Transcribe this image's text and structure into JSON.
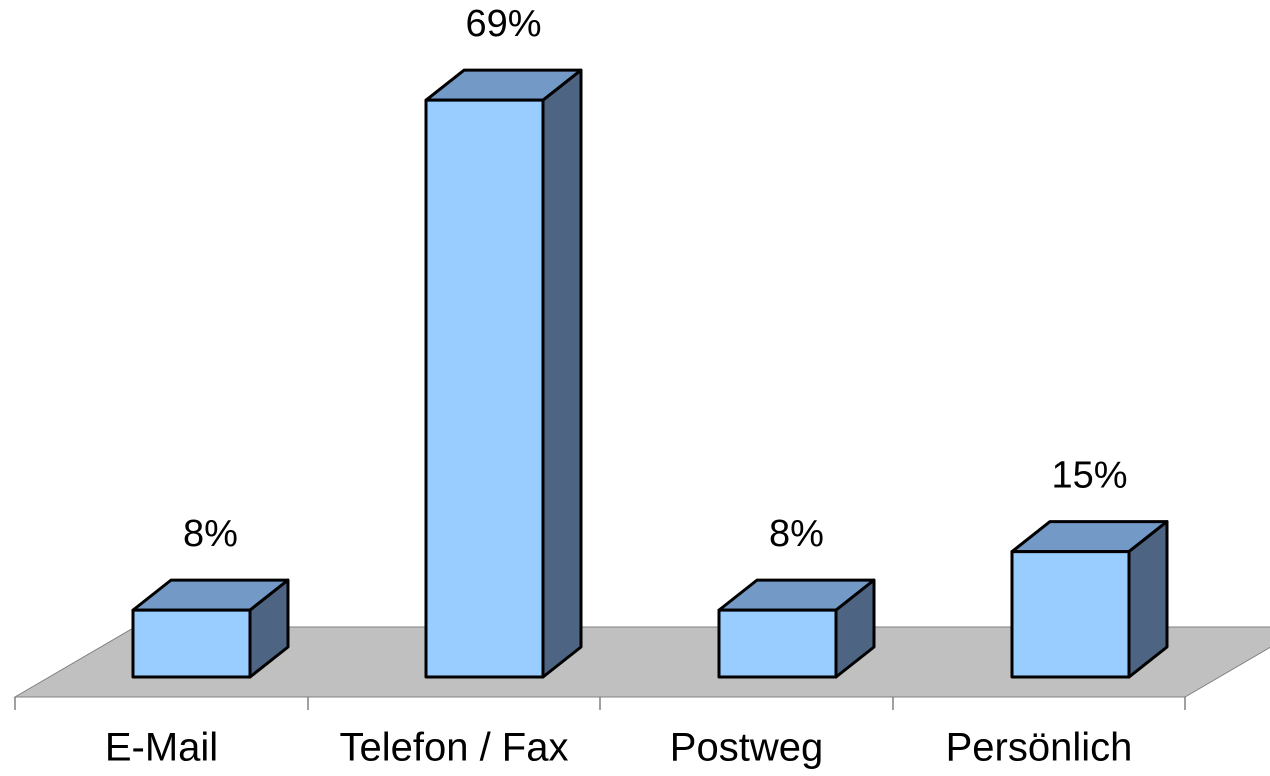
{
  "chart_data": {
    "type": "bar3d",
    "categories": [
      "E-Mail",
      "Telefon / Fax",
      "Postweg",
      "Persönlich"
    ],
    "values": [
      8,
      69,
      8,
      15
    ],
    "value_labels": [
      "8%",
      "69%",
      "8%",
      "15%"
    ],
    "colors": {
      "front": "#99ccff",
      "top": "#7399c6",
      "side": "#4d6482"
    }
  }
}
